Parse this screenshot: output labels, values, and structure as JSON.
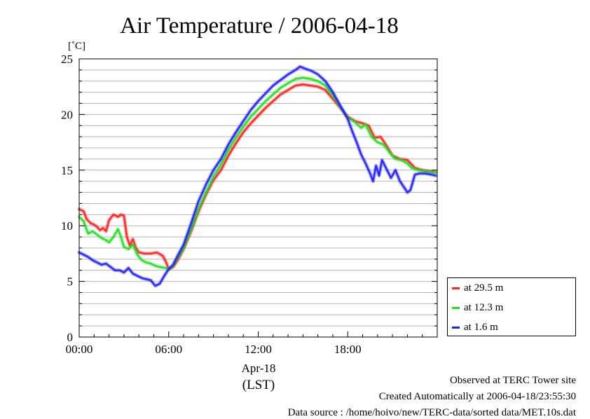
{
  "chart_data": {
    "type": "line",
    "title": "Air Temperature / 2006-04-18",
    "yunit": "[˚C]",
    "xlabel_date": "Apr-18",
    "xlabel_tz": "(LST)",
    "xlim": [
      0,
      24
    ],
    "ylim": [
      0,
      25
    ],
    "x_ticks": [
      0,
      6,
      12,
      18
    ],
    "x_tick_labels": [
      "00:00",
      "06:00",
      "12:00",
      "18:00"
    ],
    "y_ticks": [
      0,
      5,
      10,
      15,
      20,
      25
    ],
    "y_tick_labels": [
      "0",
      "5",
      "10",
      "15",
      "20",
      "25"
    ],
    "grid": true,
    "legend_position": "outside-right-bottom",
    "series": [
      {
        "name": "at 29.5 m",
        "color": "#ff2020",
        "points": [
          [
            0.0,
            11.5
          ],
          [
            0.3,
            11.3
          ],
          [
            0.5,
            10.6
          ],
          [
            0.8,
            10.2
          ],
          [
            1.0,
            10.1
          ],
          [
            1.2,
            9.9
          ],
          [
            1.4,
            9.6
          ],
          [
            1.6,
            9.8
          ],
          [
            1.8,
            9.5
          ],
          [
            2.0,
            10.5
          ],
          [
            2.3,
            11.0
          ],
          [
            2.6,
            10.8
          ],
          [
            2.8,
            11.0
          ],
          [
            3.0,
            10.9
          ],
          [
            3.2,
            9.0
          ],
          [
            3.4,
            8.2
          ],
          [
            3.6,
            8.8
          ],
          [
            3.8,
            8.0
          ],
          [
            4.0,
            7.6
          ],
          [
            4.4,
            7.5
          ],
          [
            4.8,
            7.5
          ],
          [
            5.2,
            7.6
          ],
          [
            5.6,
            7.3
          ],
          [
            5.8,
            6.8
          ],
          [
            6.0,
            6.1
          ],
          [
            6.3,
            6.3
          ],
          [
            6.6,
            6.9
          ],
          [
            7.0,
            7.9
          ],
          [
            7.5,
            9.5
          ],
          [
            8.0,
            11.3
          ],
          [
            8.5,
            12.8
          ],
          [
            9.0,
            14.1
          ],
          [
            9.5,
            15.0
          ],
          [
            10.0,
            16.3
          ],
          [
            10.5,
            17.4
          ],
          [
            11.0,
            18.4
          ],
          [
            11.5,
            19.2
          ],
          [
            12.0,
            19.9
          ],
          [
            12.5,
            20.6
          ],
          [
            13.0,
            21.2
          ],
          [
            13.5,
            21.8
          ],
          [
            14.0,
            22.2
          ],
          [
            14.5,
            22.6
          ],
          [
            15.0,
            22.7
          ],
          [
            15.5,
            22.6
          ],
          [
            16.0,
            22.5
          ],
          [
            16.5,
            22.2
          ],
          [
            17.0,
            21.4
          ],
          [
            17.5,
            20.6
          ],
          [
            18.0,
            19.8
          ],
          [
            18.5,
            19.4
          ],
          [
            19.0,
            19.2
          ],
          [
            19.4,
            19.0
          ],
          [
            19.8,
            17.9
          ],
          [
            20.2,
            18.0
          ],
          [
            20.6,
            17.2
          ],
          [
            21.0,
            16.3
          ],
          [
            21.5,
            16.0
          ],
          [
            22.0,
            15.9
          ],
          [
            22.5,
            15.2
          ],
          [
            23.0,
            15.0
          ],
          [
            23.5,
            14.9
          ],
          [
            23.9,
            14.8
          ]
        ]
      },
      {
        "name": "at 12.3 m",
        "color": "#20e020",
        "points": [
          [
            0.0,
            10.8
          ],
          [
            0.3,
            10.4
          ],
          [
            0.6,
            9.3
          ],
          [
            0.9,
            9.5
          ],
          [
            1.2,
            9.2
          ],
          [
            1.5,
            8.9
          ],
          [
            1.8,
            8.7
          ],
          [
            2.0,
            8.5
          ],
          [
            2.3,
            9.0
          ],
          [
            2.6,
            9.7
          ],
          [
            2.8,
            9.0
          ],
          [
            3.0,
            8.1
          ],
          [
            3.3,
            7.9
          ],
          [
            3.6,
            8.3
          ],
          [
            3.9,
            7.4
          ],
          [
            4.2,
            6.9
          ],
          [
            4.5,
            6.7
          ],
          [
            4.8,
            6.6
          ],
          [
            5.1,
            6.4
          ],
          [
            5.4,
            6.3
          ],
          [
            5.8,
            6.2
          ],
          [
            6.0,
            6.1
          ],
          [
            6.3,
            6.4
          ],
          [
            6.6,
            7.1
          ],
          [
            7.0,
            8.0
          ],
          [
            7.5,
            9.7
          ],
          [
            8.0,
            11.5
          ],
          [
            8.5,
            13.0
          ],
          [
            9.0,
            14.4
          ],
          [
            9.5,
            15.5
          ],
          [
            10.0,
            16.8
          ],
          [
            10.5,
            17.9
          ],
          [
            11.0,
            18.9
          ],
          [
            11.5,
            19.8
          ],
          [
            12.0,
            20.5
          ],
          [
            12.5,
            21.2
          ],
          [
            13.0,
            21.8
          ],
          [
            13.5,
            22.4
          ],
          [
            14.0,
            22.8
          ],
          [
            14.5,
            23.2
          ],
          [
            15.0,
            23.3
          ],
          [
            15.5,
            23.2
          ],
          [
            16.0,
            23.0
          ],
          [
            16.5,
            22.6
          ],
          [
            17.0,
            21.7
          ],
          [
            17.5,
            20.7
          ],
          [
            18.0,
            19.7
          ],
          [
            18.5,
            19.3
          ],
          [
            18.9,
            18.8
          ],
          [
            19.2,
            19.1
          ],
          [
            19.6,
            18.0
          ],
          [
            20.0,
            17.5
          ],
          [
            20.4,
            17.3
          ],
          [
            20.8,
            16.6
          ],
          [
            21.2,
            16.0
          ],
          [
            21.6,
            15.9
          ],
          [
            22.0,
            15.6
          ],
          [
            22.3,
            15.2
          ],
          [
            22.7,
            15.0
          ],
          [
            23.2,
            14.9
          ],
          [
            23.6,
            14.8
          ],
          [
            23.9,
            14.8
          ]
        ]
      },
      {
        "name": "at 1.6 m",
        "color": "#2020ff",
        "points": [
          [
            0.0,
            7.6
          ],
          [
            0.3,
            7.4
          ],
          [
            0.6,
            7.2
          ],
          [
            0.9,
            6.9
          ],
          [
            1.2,
            6.7
          ],
          [
            1.5,
            6.5
          ],
          [
            1.8,
            6.6
          ],
          [
            2.1,
            6.3
          ],
          [
            2.4,
            6.0
          ],
          [
            2.7,
            6.0
          ],
          [
            3.0,
            5.8
          ],
          [
            3.3,
            6.2
          ],
          [
            3.6,
            5.7
          ],
          [
            3.9,
            5.5
          ],
          [
            4.2,
            5.3
          ],
          [
            4.5,
            5.2
          ],
          [
            4.8,
            5.1
          ],
          [
            5.1,
            4.6
          ],
          [
            5.4,
            4.8
          ],
          [
            5.7,
            5.5
          ],
          [
            6.0,
            6.1
          ],
          [
            6.3,
            6.5
          ],
          [
            6.6,
            7.3
          ],
          [
            7.0,
            8.3
          ],
          [
            7.5,
            10.2
          ],
          [
            8.0,
            12.2
          ],
          [
            8.5,
            13.7
          ],
          [
            9.0,
            15.0
          ],
          [
            9.5,
            16.0
          ],
          [
            10.0,
            17.3
          ],
          [
            10.5,
            18.4
          ],
          [
            11.0,
            19.4
          ],
          [
            11.5,
            20.4
          ],
          [
            12.0,
            21.2
          ],
          [
            12.5,
            21.9
          ],
          [
            13.0,
            22.6
          ],
          [
            13.5,
            23.1
          ],
          [
            14.0,
            23.6
          ],
          [
            14.5,
            24.0
          ],
          [
            14.8,
            24.3
          ],
          [
            15.2,
            24.1
          ],
          [
            15.6,
            23.9
          ],
          [
            16.0,
            23.6
          ],
          [
            16.5,
            23.0
          ],
          [
            17.0,
            22.0
          ],
          [
            17.5,
            20.8
          ],
          [
            18.0,
            19.6
          ],
          [
            18.3,
            18.5
          ],
          [
            18.6,
            17.5
          ],
          [
            18.9,
            16.4
          ],
          [
            19.2,
            15.6
          ],
          [
            19.5,
            14.7
          ],
          [
            19.7,
            14.0
          ],
          [
            19.9,
            15.4
          ],
          [
            20.1,
            14.5
          ],
          [
            20.3,
            15.9
          ],
          [
            20.6,
            15.1
          ],
          [
            20.9,
            14.3
          ],
          [
            21.2,
            15.0
          ],
          [
            21.5,
            14.0
          ],
          [
            21.8,
            13.4
          ],
          [
            22.0,
            13.0
          ],
          [
            22.2,
            13.2
          ],
          [
            22.5,
            14.6
          ],
          [
            22.8,
            14.7
          ],
          [
            23.2,
            14.7
          ],
          [
            23.6,
            14.6
          ],
          [
            23.9,
            14.5
          ]
        ]
      }
    ]
  },
  "footer": {
    "line1": "Observed at TERC Tower site",
    "line2": "Created Automatically at 2006-04-18/23:55:30",
    "line3": "Data source : /home/hoivo/new/TERC-data/sorted  data/MET.10s.dat"
  }
}
